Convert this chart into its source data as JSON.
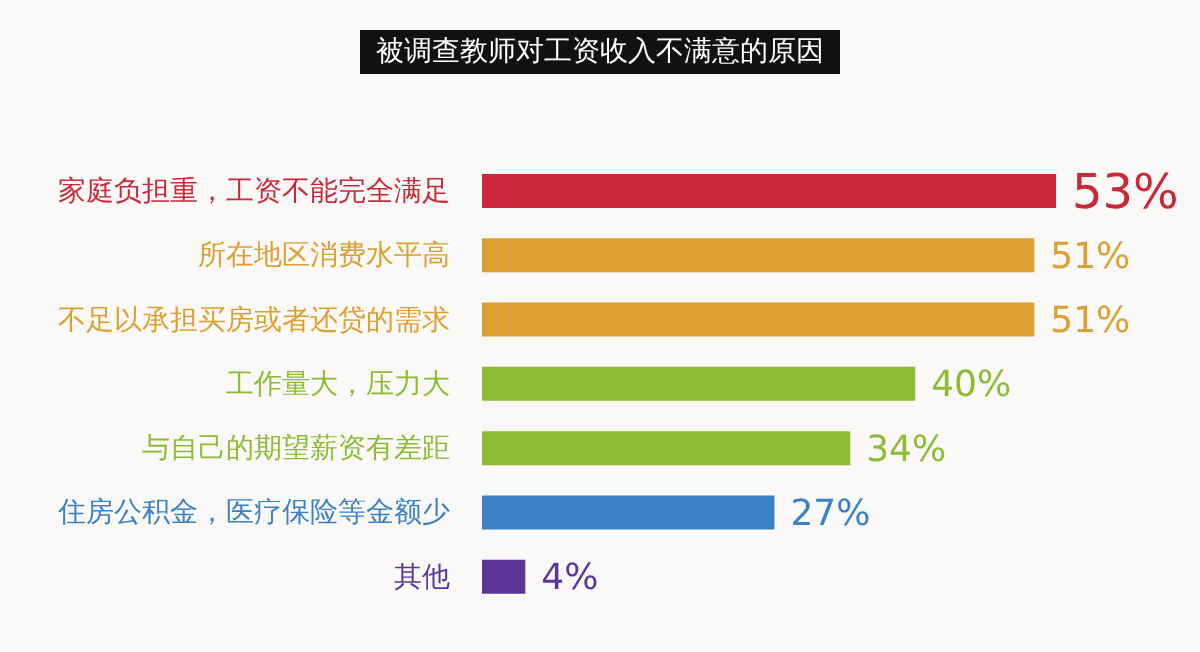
{
  "chart_data": {
    "type": "bar",
    "orientation": "horizontal",
    "title": "被调查教师对工资收入不满意的原因",
    "categories": [
      "家庭负担重，工资不能完全满足",
      "所在地区消费水平高",
      "不足以承担买房或者还贷的需求",
      "工作量大，压力大",
      "与自己的期望薪资有差距",
      "住房公积金，医疗保险等金额少",
      "其他"
    ],
    "values": [
      53,
      51,
      51,
      40,
      34,
      27,
      4
    ],
    "value_labels": [
      "53%",
      "51%",
      "51%",
      "40%",
      "34%",
      "27%",
      "4%"
    ],
    "colors": [
      "#c8283a",
      "#dba030",
      "#dba030",
      "#8dbb35",
      "#8dbb35",
      "#3a82c4",
      "#5a3596"
    ]
  }
}
